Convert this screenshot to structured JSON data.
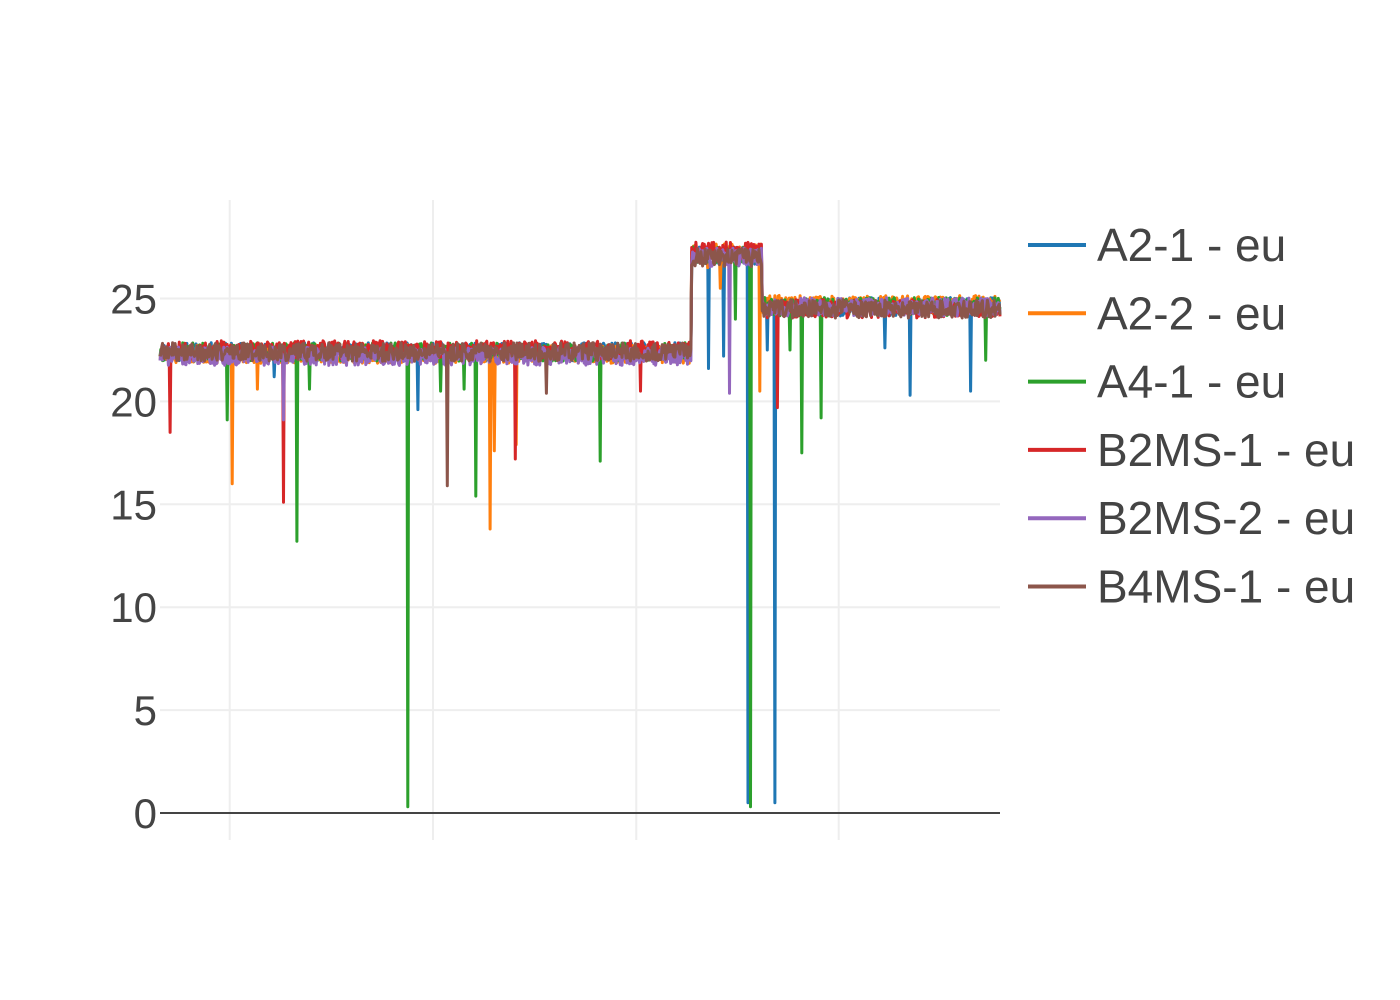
{
  "chart_data": {
    "type": "line",
    "title": "",
    "xlabel": "",
    "ylabel": "",
    "x_range": [
      0,
      1000
    ],
    "x_gridlines": [
      83,
      325,
      567,
      808
    ],
    "ylim": [
      0,
      29
    ],
    "y_ticks": [
      0,
      5,
      10,
      15,
      20,
      25
    ],
    "grid": true,
    "legend": "right",
    "series": [
      {
        "name": "A2-1 - eu",
        "color": "#1f77b4",
        "seed": 11,
        "levels": [
          22.4,
          27.1,
          24.6
        ],
        "dips": [
          [
            136,
            21.2
          ],
          [
            307,
            19.6
          ],
          [
            395,
            20.8
          ],
          [
            653,
            21.6
          ],
          [
            671,
            22.2
          ],
          [
            700,
            0.5
          ],
          [
            732,
            0.5
          ],
          [
            723,
            22.5
          ],
          [
            863,
            22.6
          ],
          [
            893,
            20.3
          ],
          [
            965,
            20.5
          ]
        ]
      },
      {
        "name": "A2-2 - eu",
        "color": "#ff7f0e",
        "seed": 23,
        "levels": [
          22.3,
          27.2,
          24.7
        ],
        "dips": [
          [
            86,
            16.0
          ],
          [
            116,
            20.6
          ],
          [
            393,
            13.8
          ],
          [
            398,
            17.6
          ],
          [
            424,
            17.9
          ],
          [
            652,
            26.5
          ],
          [
            667,
            25.5
          ],
          [
            714,
            20.5
          ]
        ]
      },
      {
        "name": "A4-1 - eu",
        "color": "#2ca02c",
        "seed": 37,
        "levels": [
          22.4,
          27.1,
          24.6
        ],
        "dips": [
          [
            80,
            19.1
          ],
          [
            163,
            13.2
          ],
          [
            178,
            20.6
          ],
          [
            295,
            0.3
          ],
          [
            334,
            20.5
          ],
          [
            362,
            20.6
          ],
          [
            376,
            15.4
          ],
          [
            524,
            17.1
          ],
          [
            685,
            24.0
          ],
          [
            703,
            0.3
          ],
          [
            750,
            22.5
          ],
          [
            764,
            17.5
          ],
          [
            787,
            19.2
          ],
          [
            983,
            22.0
          ]
        ]
      },
      {
        "name": "B2MS-1 - eu",
        "color": "#d62728",
        "seed": 53,
        "levels": [
          22.5,
          27.3,
          24.5
        ],
        "dips": [
          [
            12,
            18.5
          ],
          [
            147,
            15.1
          ],
          [
            423,
            17.2
          ],
          [
            572,
            20.5
          ],
          [
            735,
            19.7
          ]
        ]
      },
      {
        "name": "B2MS-2 - eu",
        "color": "#9467bd",
        "seed": 71,
        "levels": [
          22.2,
          27.0,
          24.6
        ],
        "dips": [
          [
            147,
            19.1
          ],
          [
            678,
            20.4
          ]
        ]
      },
      {
        "name": "B4MS-1 - eu",
        "color": "#8c564b",
        "seed": 89,
        "levels": [
          22.4,
          27.0,
          24.5
        ],
        "dips": [
          [
            342,
            15.9
          ],
          [
            460,
            20.4
          ]
        ]
      }
    ]
  }
}
